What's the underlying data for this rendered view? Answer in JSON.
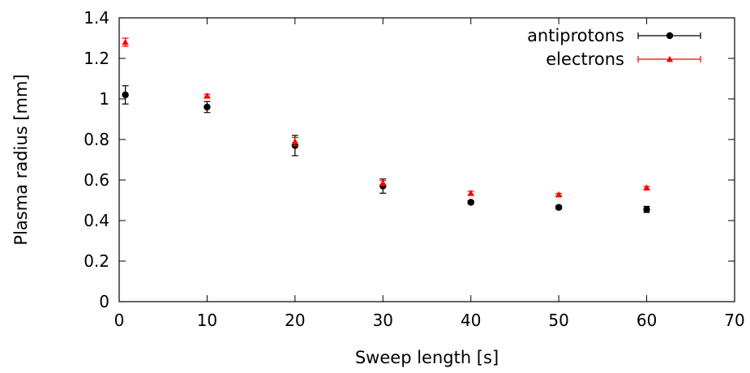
{
  "chart_data": {
    "type": "scatter",
    "title": "",
    "xlabel": "Sweep length [s]",
    "ylabel": "Plasma radius [mm]",
    "xlim": [
      0,
      70
    ],
    "ylim": [
      0,
      1.4
    ],
    "xticks": [
      0,
      10,
      20,
      30,
      40,
      50,
      60,
      70
    ],
    "xtick_labels": [
      "0",
      "10",
      "20",
      "30",
      "40",
      "50",
      "60",
      "70"
    ],
    "yticks": [
      0,
      0.2,
      0.4,
      0.6,
      0.8,
      1.0,
      1.2,
      1.4
    ],
    "ytick_labels": [
      "0",
      "0.2",
      "0.4",
      "0.6",
      "0.8",
      "1",
      "1.2",
      "1.4"
    ],
    "grid": false,
    "legend_position": "top-right",
    "series": [
      {
        "name": "antiprotons",
        "marker": "circle",
        "color": "#000000",
        "x": [
          0.7,
          10,
          20,
          30,
          40,
          50,
          60
        ],
        "y": [
          1.02,
          0.96,
          0.77,
          0.57,
          0.49,
          0.465,
          0.455
        ],
        "yerr": [
          0.045,
          0.027,
          0.05,
          0.035,
          0.008,
          0.008,
          0.015
        ]
      },
      {
        "name": "electrons",
        "marker": "triangle",
        "color": "#ff0000",
        "x": [
          0.7,
          10,
          20,
          30,
          40,
          50,
          60
        ],
        "y": [
          1.28,
          1.015,
          0.79,
          0.585,
          0.535,
          0.528,
          0.562
        ],
        "yerr": [
          0.02,
          0.008,
          0.02,
          0.012,
          0.01,
          0.006,
          0.006
        ]
      }
    ]
  }
}
